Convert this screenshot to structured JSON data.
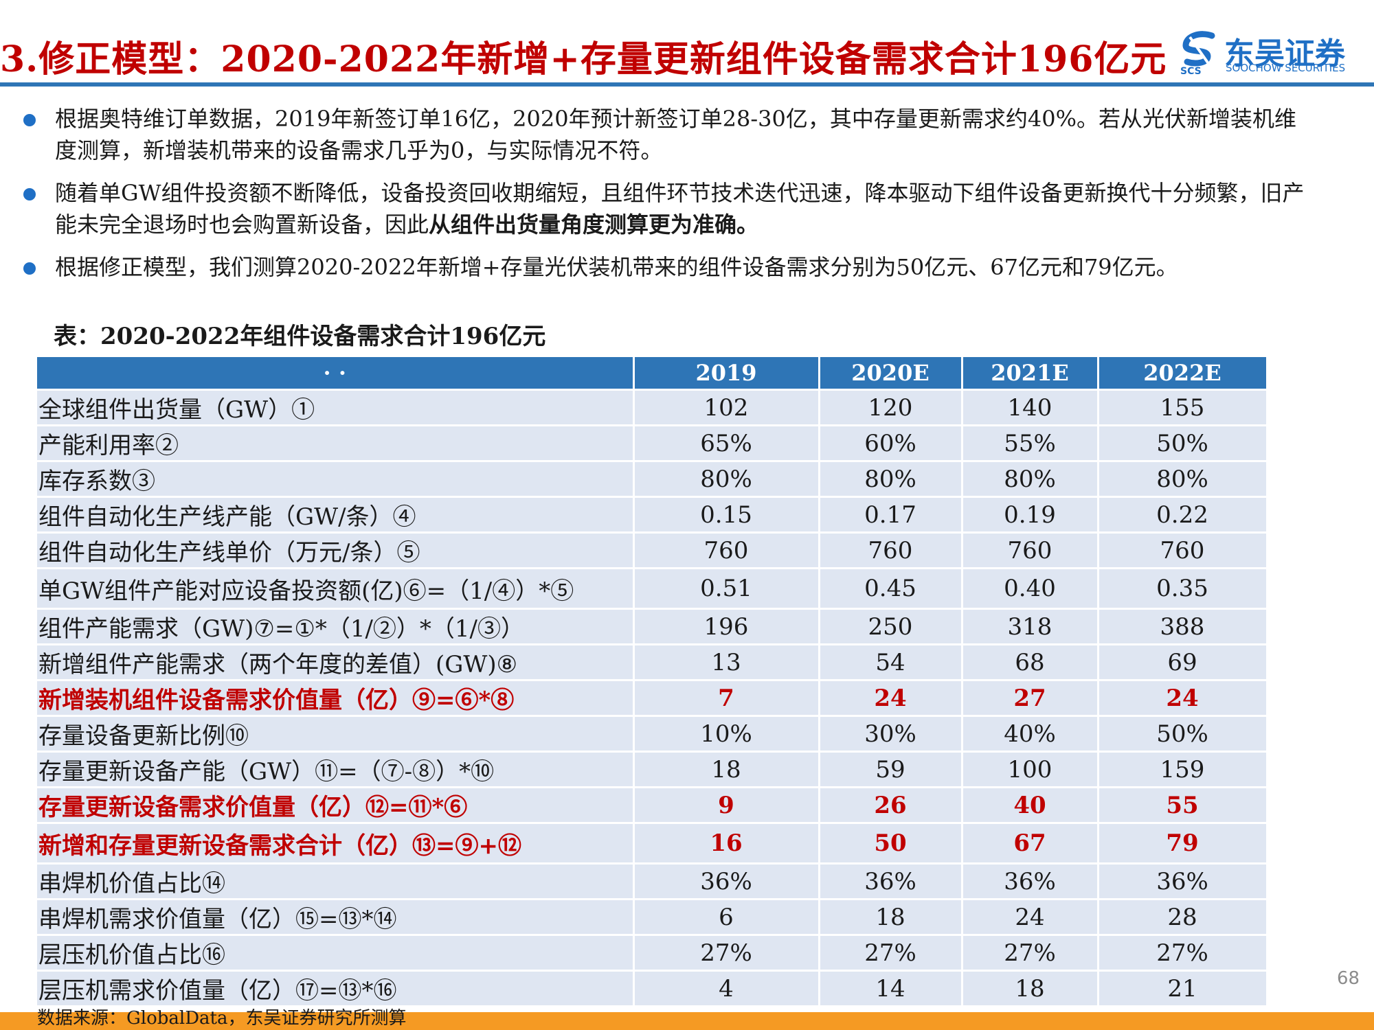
{
  "header": {
    "title": "3.修正模型：2020-2022年新增+存量更新组件设备需求合计196亿元",
    "logo_cn": "东吴证券",
    "logo_en": "SOOCHOW SECURITIES",
    "logo_abbr": "SCS"
  },
  "bullets": [
    {
      "text": "根据奥特维订单数据，2019年新签订单16亿，2020年预计新签订单28-30亿，其中存量更新需求约40%。若从光伏新增装机维度测算，新增装机带来的设备需求几乎为0，与实际情况不符。",
      "bold": ""
    },
    {
      "text": "随着单GW组件投资额不断降低，设备投资回收期缩短，且组件环节技术迭代迅速，降本驱动下组件设备更新换代十分频繁，旧产能未完全退场时也会购置新设备，因此",
      "bold": "从组件出货量角度测算更为准确。"
    },
    {
      "text": "根据修正模型，我们测算2020-2022年新增+存量光伏装机带来的组件设备需求分别为50亿元、67亿元和79亿元。",
      "bold": ""
    }
  ],
  "table": {
    "caption": "表：2020-2022年组件设备需求合计196亿元",
    "corner": "· ·",
    "headers": [
      "2019",
      "2020E",
      "2021E",
      "2022E"
    ],
    "rows": [
      {
        "label": "全球组件出货量（GW）①",
        "values": [
          "102",
          "120",
          "140",
          "155"
        ],
        "highlight": false
      },
      {
        "label": "产能利用率②",
        "values": [
          "65%",
          "60%",
          "55%",
          "50%"
        ],
        "highlight": false
      },
      {
        "label": "库存系数③",
        "values": [
          "80%",
          "80%",
          "80%",
          "80%"
        ],
        "highlight": false
      },
      {
        "label": "组件自动化生产线产能（GW/条）④",
        "values": [
          "0.15",
          "0.17",
          "0.19",
          "0.22"
        ],
        "highlight": false
      },
      {
        "label": "组件自动化生产线单价（万元/条）⑤",
        "values": [
          "760",
          "760",
          "760",
          "760"
        ],
        "highlight": false
      },
      {
        "label": "单GW组件产能对应设备投资额(亿)⑥=（1/④）*⑤",
        "values": [
          "0.51",
          "0.45",
          "0.40",
          "0.35"
        ],
        "highlight": false
      },
      {
        "label": "组件产能需求（GW)⑦=①*（1/②）*（1/③）",
        "values": [
          "196",
          "250",
          "318",
          "388"
        ],
        "highlight": false
      },
      {
        "label": "新增组件产能需求（两个年度的差值）(GW)⑧",
        "values": [
          "13",
          "54",
          "68",
          "69"
        ],
        "highlight": false
      },
      {
        "label": "新增装机组件设备需求价值量（亿）⑨=⑥*⑧",
        "values": [
          "7",
          "24",
          "27",
          "24"
        ],
        "highlight": true
      },
      {
        "label": "存量设备更新比例⑩",
        "values": [
          "10%",
          "30%",
          "40%",
          "50%"
        ],
        "highlight": false
      },
      {
        "label": "存量更新设备产能（GW）⑪=（⑦-⑧）*⑩",
        "values": [
          "18",
          "59",
          "100",
          "159"
        ],
        "highlight": false
      },
      {
        "label": "存量更新设备需求价值量（亿）⑫=⑪*⑥",
        "values": [
          "9",
          "26",
          "40",
          "55"
        ],
        "highlight": true
      },
      {
        "label": "新增和存量更新设备需求合计（亿）⑬=⑨+⑫",
        "values": [
          "16",
          "50",
          "67",
          "79"
        ],
        "highlight": true
      },
      {
        "label": "串焊机价值占比⑭",
        "values": [
          "36%",
          "36%",
          "36%",
          "36%"
        ],
        "highlight": false
      },
      {
        "label": "串焊机需求价值量（亿）⑮=⑬*⑭",
        "values": [
          "6",
          "18",
          "24",
          "28"
        ],
        "highlight": false
      },
      {
        "label": "层压机价值占比⑯",
        "values": [
          "27%",
          "27%",
          "27%",
          "27%"
        ],
        "highlight": false
      },
      {
        "label": "层压机需求价值量（亿）⑰=⑬*⑯",
        "values": [
          "4",
          "14",
          "18",
          "21"
        ],
        "highlight": false
      }
    ]
  },
  "footer": {
    "source": "数据来源：GlobalData，东吴证券研究所测算",
    "page_number": "68"
  },
  "colors": {
    "title_red": "#c00000",
    "brand_blue": "#2e75b6",
    "row_fill": "#dfe6f2",
    "bottom_bar": "#f59a23"
  }
}
